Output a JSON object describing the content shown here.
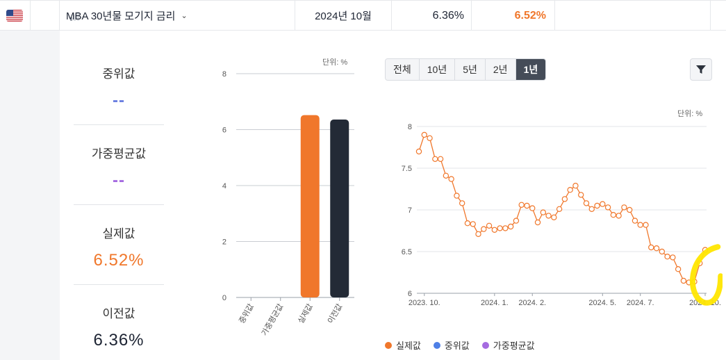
{
  "header": {
    "country_icon": "us-flag-icon",
    "importance_icon": "importance-bars-icon",
    "indicator_title": "MBA 30년물 모기지 금리",
    "release_date": "2024년 10월",
    "previous_value": "6.36%",
    "actual_value": "6.52%"
  },
  "stats": [
    {
      "label": "중위값",
      "value": "--",
      "color": "#6b7fe0"
    },
    {
      "label": "가중평균값",
      "value": "--",
      "color": "#a56be0"
    },
    {
      "label": "실제값",
      "value": "6.52%",
      "color": "#f0772b"
    },
    {
      "label": "이전값",
      "value": "6.36%",
      "color": "#1d2433"
    }
  ],
  "periods": {
    "options": [
      "전체",
      "10년",
      "5년",
      "2년",
      "1년"
    ],
    "selected": "1년"
  },
  "filter_icon": "filter-icon",
  "colors": {
    "actual": "#f0772b",
    "median": "#4e7fe6",
    "weighted": "#a56be0",
    "previous": "#232a36"
  },
  "chart_data": [
    {
      "type": "bar",
      "unit_label": "단위: %",
      "categories": [
        "중위값",
        "가중평균값",
        "실제값",
        "이전값"
      ],
      "values": [
        null,
        null,
        6.52,
        6.36
      ],
      "ylim": [
        0,
        8
      ],
      "yticks": [
        0,
        2,
        4,
        6,
        8
      ],
      "grid": true
    },
    {
      "type": "line",
      "unit_label": "단위: %",
      "series": [
        {
          "name": "실제값",
          "values": [
            7.7,
            7.9,
            7.86,
            7.61,
            7.61,
            7.41,
            7.37,
            7.17,
            7.08,
            6.84,
            6.83,
            6.71,
            6.77,
            6.81,
            6.76,
            6.78,
            6.78,
            6.8,
            6.87,
            7.06,
            7.05,
            7.02,
            6.85,
            6.97,
            6.93,
            6.91,
            7.01,
            7.13,
            7.24,
            7.29,
            7.18,
            7.08,
            7.01,
            7.05,
            7.07,
            7.03,
            6.94,
            6.93,
            7.03,
            7.0,
            6.87,
            6.82,
            6.82,
            6.55,
            6.54,
            6.5,
            6.44,
            6.43,
            6.29,
            6.15,
            6.13,
            6.14,
            6.36,
            6.52
          ]
        },
        {
          "name": "중위값",
          "values": []
        },
        {
          "name": "가중평균값",
          "values": []
        }
      ],
      "x_tick_labels": [
        "2023. 10.",
        "2024. 1.",
        "2024. 2.",
        "2024. 5.",
        "2024. 7.",
        "2024. 10."
      ],
      "x_tick_index": [
        1,
        14,
        21,
        34,
        41,
        53
      ],
      "ylim": [
        6,
        8
      ],
      "yticks": [
        "6",
        "6.5",
        "7",
        "7.5",
        "8"
      ],
      "grid": true,
      "legend": "bottom"
    }
  ]
}
